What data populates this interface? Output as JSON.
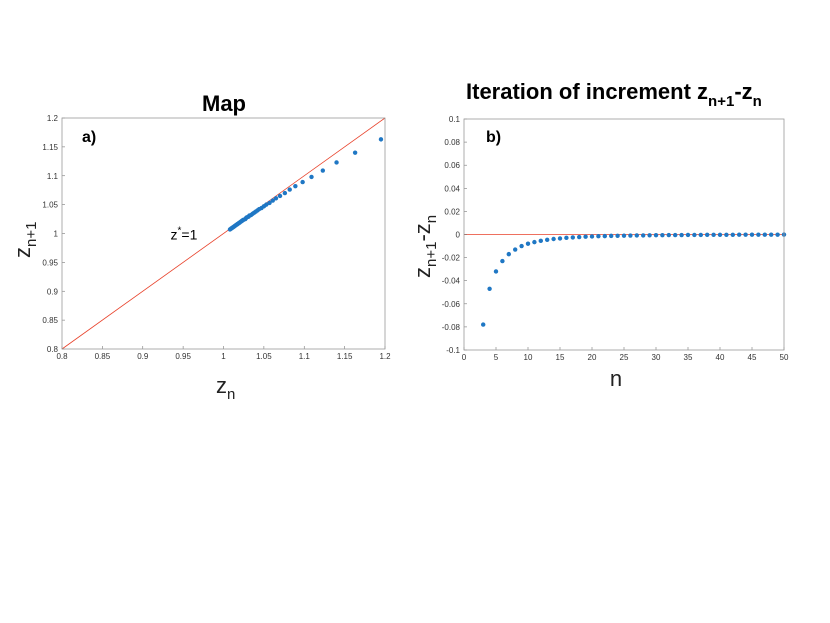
{
  "chart_data": [
    {
      "type": "scatter",
      "title": "Map",
      "panel_label": "a)",
      "xlabel": {
        "main": "z",
        "sub": "n"
      },
      "ylabel": {
        "main": "z",
        "sub": "n+1"
      },
      "xlim": [
        0.8,
        1.2
      ],
      "ylim": [
        0.8,
        1.2
      ],
      "xticks": [
        "0.8",
        "0.85",
        "0.9",
        "0.95",
        "1",
        "1.05",
        "1.1",
        "1.15",
        "1.2"
      ],
      "yticks": [
        "0.8",
        "0.85",
        "0.9",
        "0.95",
        "1",
        "1.05",
        "1.1",
        "1.15",
        "1.2"
      ],
      "annotation": {
        "text": "z",
        "sup": "*",
        "suffix": "=1",
        "at": [
          1.0,
          1.0
        ]
      },
      "reference_line": {
        "type": "identity",
        "color": "#e8412a"
      },
      "point_color": "#1f77c4",
      "points": [
        [
          1.195,
          1.163
        ],
        [
          1.163,
          1.14
        ],
        [
          1.14,
          1.123
        ],
        [
          1.123,
          1.109
        ],
        [
          1.109,
          1.098
        ],
        [
          1.098,
          1.089
        ],
        [
          1.089,
          1.082
        ],
        [
          1.082,
          1.076
        ],
        [
          1.076,
          1.07
        ],
        [
          1.07,
          1.065
        ],
        [
          1.065,
          1.061
        ],
        [
          1.061,
          1.057
        ],
        [
          1.057,
          1.053
        ],
        [
          1.053,
          1.05
        ],
        [
          1.05,
          1.047
        ],
        [
          1.047,
          1.044
        ],
        [
          1.044,
          1.042
        ],
        [
          1.042,
          1.04
        ],
        [
          1.04,
          1.038
        ],
        [
          1.038,
          1.036
        ],
        [
          1.036,
          1.034
        ],
        [
          1.034,
          1.032
        ],
        [
          1.032,
          1.031
        ],
        [
          1.031,
          1.029
        ],
        [
          1.029,
          1.028
        ],
        [
          1.028,
          1.027
        ],
        [
          1.027,
          1.025
        ],
        [
          1.025,
          1.024
        ],
        [
          1.024,
          1.023
        ],
        [
          1.023,
          1.022
        ],
        [
          1.022,
          1.021
        ],
        [
          1.021,
          1.02
        ],
        [
          1.02,
          1.019
        ],
        [
          1.019,
          1.018
        ],
        [
          1.018,
          1.017
        ],
        [
          1.017,
          1.016
        ],
        [
          1.016,
          1.015
        ],
        [
          1.015,
          1.014
        ],
        [
          1.014,
          1.013
        ],
        [
          1.013,
          1.012
        ],
        [
          1.012,
          1.011
        ],
        [
          1.011,
          1.01
        ],
        [
          1.01,
          1.009
        ],
        [
          1.009,
          1.008
        ],
        [
          1.008,
          1.007
        ]
      ]
    },
    {
      "type": "scatter",
      "title": {
        "main": "Iteration of increment z",
        "sub1": "n+1",
        "mid": "-z",
        "sub2": "n"
      },
      "panel_label": "b)",
      "xlabel": "n",
      "ylabel": {
        "main1": "z",
        "sub1": "n+1",
        "mid": "-z",
        "sub2": "n"
      },
      "xlim": [
        0,
        50
      ],
      "ylim": [
        -0.1,
        0.1
      ],
      "xticks": [
        "0",
        "5",
        "10",
        "15",
        "20",
        "25",
        "30",
        "35",
        "40",
        "45",
        "50"
      ],
      "yticks": [
        "-0.1",
        "-0.08",
        "-0.06",
        "-0.04",
        "-0.02",
        "0",
        "0.02",
        "0.04",
        "0.06",
        "0.08",
        "0.1"
      ],
      "reference_line": {
        "type": "horizontal",
        "y": 0,
        "color": "#e8412a"
      },
      "point_color": "#1f77c4",
      "points": [
        [
          3,
          -0.078
        ],
        [
          4,
          -0.047
        ],
        [
          5,
          -0.032
        ],
        [
          6,
          -0.023
        ],
        [
          7,
          -0.017
        ],
        [
          8,
          -0.013
        ],
        [
          9,
          -0.01
        ],
        [
          10,
          -0.008
        ],
        [
          11,
          -0.0066
        ],
        [
          12,
          -0.0055
        ],
        [
          13,
          -0.0046
        ],
        [
          14,
          -0.0039
        ],
        [
          15,
          -0.0034
        ],
        [
          16,
          -0.0029
        ],
        [
          17,
          -0.0025
        ],
        [
          18,
          -0.0022
        ],
        [
          19,
          -0.0019
        ],
        [
          20,
          -0.0017
        ],
        [
          21,
          -0.0015
        ],
        [
          22,
          -0.0014
        ],
        [
          23,
          -0.0012
        ],
        [
          24,
          -0.0011
        ],
        [
          25,
          -0.001
        ],
        [
          26,
          -0.0009
        ],
        [
          27,
          -0.0008
        ],
        [
          28,
          -0.0008
        ],
        [
          29,
          -0.0007
        ],
        [
          30,
          -0.0006
        ],
        [
          31,
          -0.0006
        ],
        [
          32,
          -0.0005
        ],
        [
          33,
          -0.0005
        ],
        [
          34,
          -0.0005
        ],
        [
          35,
          -0.0004
        ],
        [
          36,
          -0.0004
        ],
        [
          37,
          -0.0004
        ],
        [
          38,
          -0.0003
        ],
        [
          39,
          -0.0003
        ],
        [
          40,
          -0.0003
        ],
        [
          41,
          -0.0003
        ],
        [
          42,
          -0.0003
        ],
        [
          43,
          -0.0002
        ],
        [
          44,
          -0.0002
        ],
        [
          45,
          -0.0002
        ],
        [
          46,
          -0.0002
        ],
        [
          47,
          -0.0002
        ],
        [
          48,
          -0.0002
        ],
        [
          49,
          -0.0002
        ],
        [
          50,
          -0.0001
        ]
      ]
    }
  ]
}
